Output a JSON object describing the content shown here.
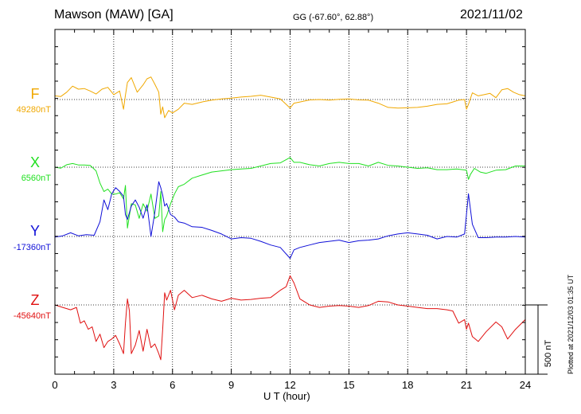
{
  "header": {
    "title": "Mawson (MAW)  [GA]",
    "coords": "GG (-67.60°,  62.88°)",
    "date": "2021/11/02"
  },
  "footer": {
    "plotted": "Plotted at 2021/12/03 01:35 UT"
  },
  "chart_data": {
    "type": "line",
    "title": "Mawson (MAW)  [GA]",
    "xlabel": "U T (hour)",
    "xlim": [
      0,
      24
    ],
    "xticks": [
      0,
      3,
      6,
      9,
      12,
      15,
      18,
      21,
      24
    ],
    "grid": true,
    "scale_bar": {
      "label": "500 nT",
      "value_nT": 500
    },
    "series": [
      {
        "name": "F",
        "baseline_label": "49280nT",
        "baseline_nT": 49280,
        "color": "#f0a800",
        "x": [
          0,
          0.3,
          0.6,
          0.9,
          1.2,
          1.5,
          1.8,
          2.1,
          2.4,
          2.7,
          3.0,
          3.3,
          3.5,
          3.6,
          3.7,
          3.9,
          4.2,
          4.5,
          4.7,
          4.9,
          5.1,
          5.3,
          5.4,
          5.5,
          5.6,
          5.8,
          6.0,
          6.3,
          6.6,
          7.0,
          7.5,
          8,
          8.5,
          9,
          9.5,
          10,
          10.5,
          11,
          11.5,
          11.8,
          12.0,
          12.2,
          12.5,
          13,
          13.5,
          14,
          14.5,
          15,
          15.5,
          16,
          16.5,
          17,
          17.5,
          18,
          18.5,
          19,
          19.5,
          20,
          20.3,
          20.6,
          20.9,
          21.0,
          21.1,
          21.3,
          21.6,
          21.9,
          22.2,
          22.5,
          22.8,
          23.1,
          23.4,
          23.7,
          24
        ],
        "y": [
          30,
          25,
          60,
          110,
          85,
          90,
          70,
          45,
          85,
          100,
          40,
          70,
          -80,
          35,
          140,
          180,
          60,
          120,
          170,
          185,
          125,
          60,
          -120,
          -60,
          -150,
          -90,
          -110,
          -80,
          -30,
          -40,
          -20,
          -5,
          5,
          12,
          20,
          26,
          35,
          20,
          5,
          -40,
          -70,
          -30,
          -20,
          -3,
          0,
          -5,
          2,
          5,
          -3,
          -5,
          -30,
          -65,
          -70,
          -68,
          -65,
          -55,
          -40,
          -35,
          -20,
          -5,
          0,
          -80,
          -40,
          55,
          30,
          40,
          50,
          15,
          80,
          90,
          60,
          40,
          30
        ]
      },
      {
        "name": "X",
        "baseline_label": "6560nT",
        "baseline_nT": 6560,
        "color": "#20e020",
        "x": [
          0,
          0.3,
          0.6,
          0.9,
          1.2,
          1.5,
          1.8,
          2.1,
          2.3,
          2.5,
          2.7,
          2.9,
          3.1,
          3.3,
          3.5,
          3.6,
          3.7,
          3.9,
          4.1,
          4.3,
          4.5,
          4.7,
          4.9,
          5.1,
          5.3,
          5.4,
          5.5,
          5.6,
          5.7,
          5.9,
          6.1,
          6.3,
          6.6,
          7,
          7.5,
          8,
          8.5,
          9,
          9.5,
          10,
          10.5,
          11,
          11.5,
          12,
          12.2,
          12.5,
          13,
          13.5,
          14,
          14.5,
          15,
          15.5,
          16,
          16.5,
          17,
          17.5,
          18,
          18.5,
          19,
          19.5,
          20,
          20.5,
          21,
          21.1,
          21.2,
          21.4,
          21.7,
          22,
          22.5,
          23,
          23.5,
          24
        ],
        "y": [
          0,
          -8,
          20,
          30,
          18,
          18,
          15,
          -30,
          -130,
          -200,
          -180,
          -220,
          -220,
          -210,
          -260,
          -150,
          -500,
          -300,
          -310,
          -420,
          -300,
          -360,
          -220,
          -420,
          -400,
          -200,
          -530,
          -430,
          -400,
          -300,
          -220,
          -160,
          -140,
          -90,
          -65,
          -40,
          -30,
          -20,
          -15,
          -10,
          10,
          30,
          35,
          80,
          40,
          40,
          20,
          10,
          30,
          40,
          30,
          30,
          10,
          40,
          15,
          10,
          0,
          -10,
          -5,
          -20,
          -20,
          -15,
          -25,
          -100,
          -60,
          -10,
          -40,
          -50,
          -25,
          -20,
          10,
          10
        ]
      },
      {
        "name": "Y",
        "baseline_label": "-17360nT",
        "baseline_nT": -17360,
        "color": "#1010d8",
        "x": [
          0,
          0.4,
          0.8,
          1.2,
          1.6,
          2.0,
          2.3,
          2.5,
          2.7,
          2.9,
          3.1,
          3.3,
          3.5,
          3.6,
          3.7,
          3.9,
          4.1,
          4.3,
          4.5,
          4.7,
          4.9,
          5.1,
          5.3,
          5.4,
          5.5,
          5.6,
          5.7,
          5.9,
          6.1,
          6.3,
          6.6,
          7,
          7.5,
          8,
          8.5,
          9,
          9.5,
          10,
          10.5,
          11,
          11.5,
          12,
          12.2,
          12.5,
          13,
          13.5,
          14,
          14.5,
          15,
          15.5,
          16,
          16.5,
          17,
          17.5,
          18,
          18.5,
          19,
          19.5,
          20,
          20.5,
          20.9,
          21.1,
          21.3,
          21.6,
          22,
          22.5,
          23,
          23.5,
          24
        ],
        "y": [
          -5,
          5,
          30,
          5,
          15,
          10,
          120,
          300,
          220,
          350,
          400,
          370,
          330,
          180,
          140,
          250,
          300,
          240,
          150,
          260,
          0,
          200,
          450,
          400,
          340,
          250,
          270,
          180,
          160,
          120,
          110,
          80,
          75,
          50,
          20,
          -20,
          -10,
          -15,
          -40,
          -70,
          -90,
          -180,
          -110,
          -90,
          -70,
          -50,
          -40,
          -30,
          -50,
          -35,
          -30,
          -20,
          5,
          20,
          30,
          20,
          10,
          -20,
          0,
          -5,
          20,
          350,
          100,
          -10,
          -10,
          -5,
          -5,
          0,
          -5
        ]
      },
      {
        "name": "Z",
        "baseline_label": "-45640nT",
        "baseline_nT": -45640,
        "color": "#e01010",
        "x": [
          0,
          0.4,
          0.8,
          1.1,
          1.3,
          1.5,
          1.7,
          1.9,
          2.1,
          2.3,
          2.5,
          2.7,
          2.9,
          3.1,
          3.3,
          3.5,
          3.6,
          3.7,
          3.8,
          3.9,
          4.1,
          4.3,
          4.5,
          4.7,
          4.9,
          5.1,
          5.3,
          5.4,
          5.5,
          5.6,
          5.7,
          5.9,
          6.1,
          6.3,
          6.6,
          7,
          7.5,
          8,
          8.5,
          9,
          9.5,
          10,
          10.5,
          11,
          11.5,
          11.8,
          12,
          12.2,
          12.5,
          13,
          13.5,
          14,
          14.5,
          15,
          15.5,
          16,
          16.5,
          17,
          17.5,
          18,
          18.5,
          19,
          19.5,
          20,
          20.3,
          20.6,
          20.9,
          21.0,
          21.1,
          21.3,
          21.6,
          22,
          22.5,
          22.8,
          23.1,
          23.5,
          24
        ],
        "y": [
          0,
          -20,
          -40,
          -20,
          -150,
          -130,
          -200,
          -180,
          -300,
          -240,
          -350,
          -300,
          -280,
          -250,
          -320,
          -400,
          -150,
          50,
          -50,
          -400,
          -330,
          -210,
          -380,
          -200,
          -350,
          -320,
          -400,
          -450,
          -200,
          100,
          40,
          120,
          -40,
          80,
          120,
          60,
          80,
          50,
          30,
          55,
          40,
          45,
          55,
          60,
          120,
          150,
          240,
          180,
          50,
          0,
          -20,
          -10,
          -5,
          -10,
          -20,
          -5,
          30,
          25,
          0,
          -10,
          -20,
          -30,
          -30,
          -40,
          -50,
          -150,
          -120,
          -200,
          -150,
          -260,
          -300,
          -220,
          -140,
          -180,
          -280,
          -200,
          -120
        ]
      }
    ]
  }
}
